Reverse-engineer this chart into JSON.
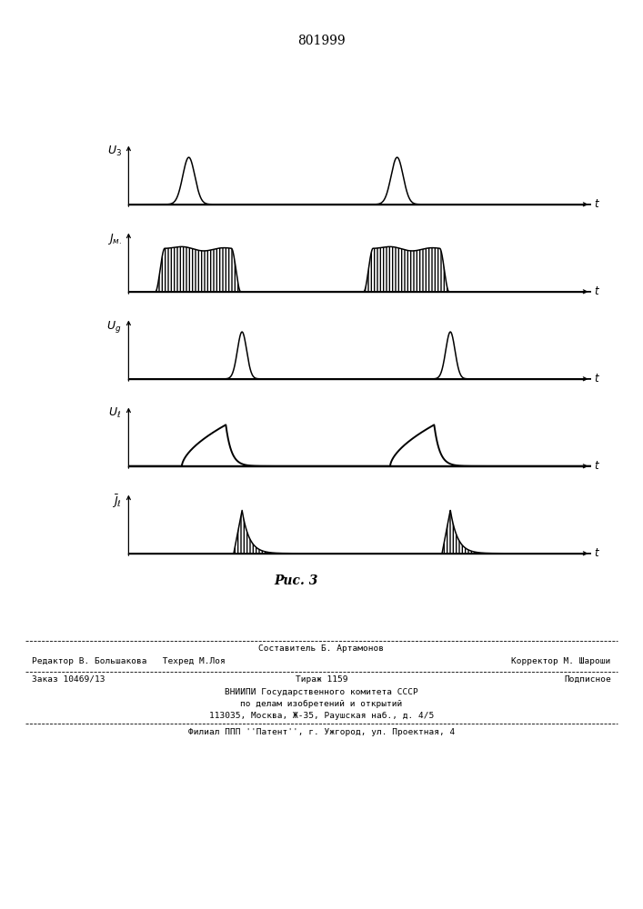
{
  "title": "801999",
  "fig_label": "Рис. 3",
  "bg_color": "#ffffff",
  "ylabel_0": "U_3",
  "ylabel_1": "J_m.",
  "ylabel_2": "U_g",
  "ylabel_3": "U_l",
  "ylabel_4": "J_l_bar",
  "p1": 0.13,
  "p2": 0.58,
  "footer": {
    "line1_center": "Составитель Б. Артамонов",
    "line1_left": "Редактор В. Большакова   Техред М.Лоя",
    "line1_right": "Корректор М. Шароши",
    "line2_left": "Заказ 10469/13",
    "line2_center": "Тираж 1159",
    "line2_right": "Подписное",
    "line3": "ВНИИПИ Государственного комитета СССР",
    "line4": "по делам изобретений и открытий",
    "line5": "113035, Москва, Ж-35, Раушская наб., д. 4/5",
    "line6": "Филиал ППП ''Патент'', г. Ужгород, ул. Проектная, 4"
  }
}
